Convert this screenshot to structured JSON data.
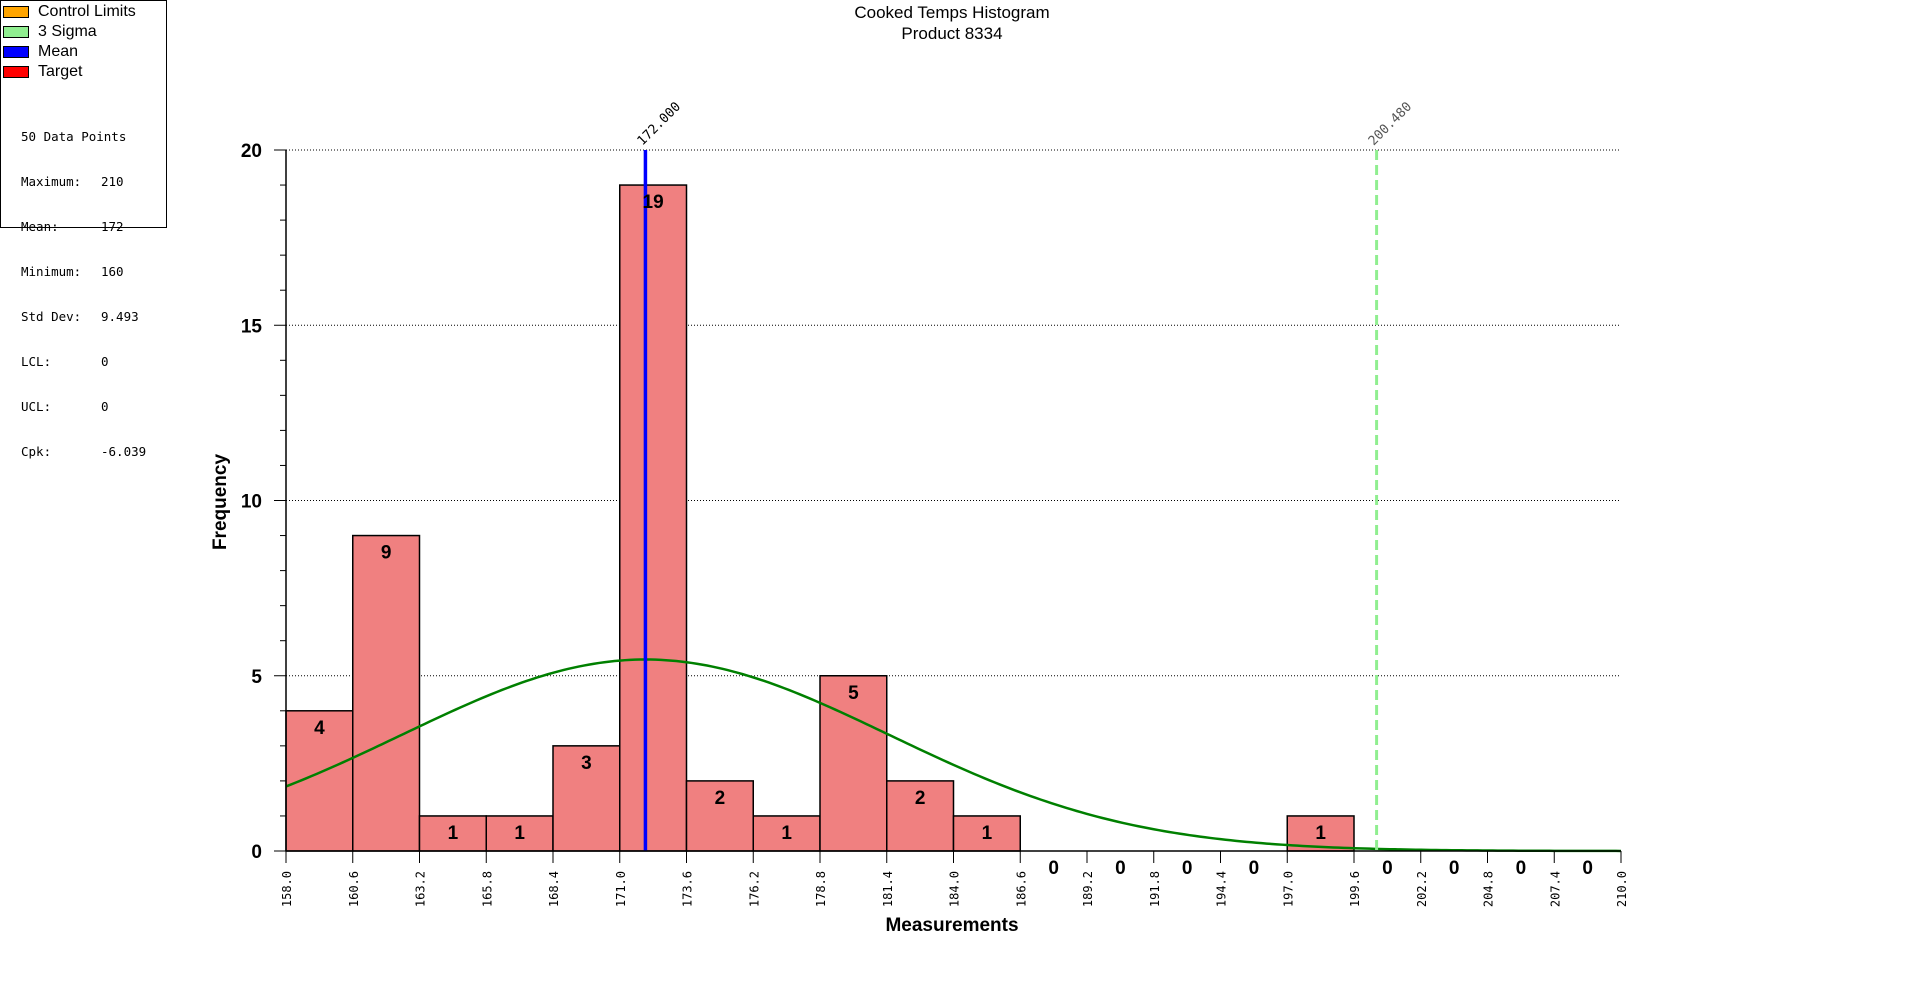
{
  "legend": {
    "items": [
      {
        "label": "Control Limits",
        "color": "#FFA500"
      },
      {
        "label": "3 Sigma",
        "color": "#90EE90"
      },
      {
        "label": "Mean",
        "color": "#0000FF"
      },
      {
        "label": "Target",
        "color": "#FF0000"
      }
    ]
  },
  "stats": {
    "count_label": "50 Data Points",
    "rows": [
      {
        "name": "Maximum:",
        "value": "210"
      },
      {
        "name": "Mean:",
        "value": "172"
      },
      {
        "name": "Minimum:",
        "value": "160"
      },
      {
        "name": "Std Dev:",
        "value": "9.493"
      },
      {
        "name": "LCL:",
        "value": "0"
      },
      {
        "name": "UCL:",
        "value": "0"
      },
      {
        "name": "Cpk:",
        "value": "-6.039"
      }
    ]
  },
  "chart_data": {
    "type": "bar",
    "title": "Cooked Temps Histogram",
    "subtitle": "Product 8334",
    "xlabel": "Measurements",
    "ylabel": "Frequency",
    "ylim": [
      0,
      20
    ],
    "xlim": [
      158.0,
      210.0
    ],
    "yticks": [
      0,
      5,
      10,
      15,
      20
    ],
    "xticks": [
      "158.0",
      "160.6",
      "163.2",
      "165.8",
      "168.4",
      "171.0",
      "173.6",
      "176.2",
      "178.8",
      "181.4",
      "184.0",
      "186.6",
      "189.2",
      "191.8",
      "194.4",
      "197.0",
      "199.6",
      "202.2",
      "204.8",
      "207.4",
      "210.0"
    ],
    "bin_edges": [
      158.0,
      160.6,
      163.2,
      165.8,
      168.4,
      171.0,
      173.6,
      176.2,
      178.8,
      181.4,
      184.0,
      186.6,
      189.2,
      191.8,
      194.4,
      197.0,
      199.6,
      202.2,
      204.8,
      207.4,
      210.0
    ],
    "values": [
      4,
      9,
      1,
      1,
      3,
      19,
      2,
      1,
      5,
      2,
      1,
      0,
      0,
      0,
      0,
      1,
      0,
      0,
      0,
      0
    ],
    "grid": "horizontal dotted",
    "legend_position": "top-left",
    "bar_color": "#F08080",
    "mean_line": {
      "value": 172.0,
      "label": "172.000",
      "color": "#0000FF"
    },
    "sigma_line": {
      "value": 200.48,
      "label": "200.480",
      "color": "#90EE90"
    },
    "normal_curve": {
      "mean": 172.0,
      "std": 9.493,
      "n": 50,
      "bin_width": 2.6,
      "color": "#008000"
    }
  }
}
